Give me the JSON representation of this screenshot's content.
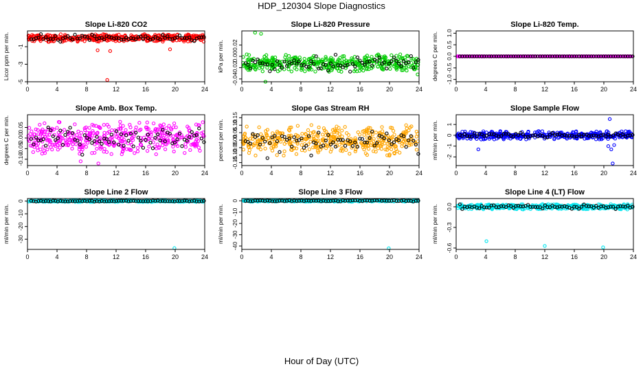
{
  "figure": {
    "title": "HDP_120304  Slope Diagnostics",
    "xlabel": "Hour of Day (UTC)"
  },
  "chart_data": [
    {
      "type": "scatter",
      "title": "Slope Li-820 CO2",
      "ylabel": "Licor ppm per min.",
      "xlim": [
        0,
        24
      ],
      "xticks": [
        0,
        4,
        8,
        12,
        16,
        20,
        24
      ],
      "xtick_labels": [
        "0",
        "4",
        "8",
        "12",
        "16",
        "20",
        "24"
      ],
      "ylim": [
        -5,
        0.8
      ],
      "yticks": [
        -5,
        -3,
        -1
      ],
      "ytick_labels": [
        "-5",
        "-3",
        "-1"
      ],
      "color": "#ff0000",
      "center": 0,
      "spread": 0.35,
      "outliers": [
        {
          "x": 10.8,
          "y": -4.8
        },
        {
          "x": 9.5,
          "y": -1.4
        },
        {
          "x": 11.2,
          "y": -1.5
        },
        {
          "x": 19.3,
          "y": -1.3
        }
      ]
    },
    {
      "type": "scatter",
      "title": "Slope Li-820 Pressure",
      "ylabel": "kPa per min.",
      "xlim": [
        0,
        24
      ],
      "xticks": [
        0,
        4,
        8,
        12,
        16,
        20,
        24
      ],
      "xtick_labels": [
        "0",
        "4",
        "8",
        "12",
        "16",
        "20",
        "24"
      ],
      "ylim": [
        -0.045,
        0.045
      ],
      "yticks": [
        -0.04,
        -0.02,
        0,
        0.02
      ],
      "ytick_labels": [
        "-0.04",
        "-0.02",
        "0.00",
        "0.02"
      ],
      "color": "#00cc00",
      "center": -0.012,
      "spread": 0.012,
      "outliers": [
        {
          "x": 1.8,
          "y": 0.042
        },
        {
          "x": 2.6,
          "y": 0.04
        },
        {
          "x": 3.2,
          "y": -0.045
        },
        {
          "x": 23.8,
          "y": -0.032
        }
      ]
    },
    {
      "type": "scatter",
      "title": "Slope Li-820 Temp.",
      "ylabel": "degrees C per min.",
      "xlim": [
        0,
        24
      ],
      "xticks": [
        0,
        4,
        8,
        12,
        16,
        20,
        24
      ],
      "xtick_labels": [
        "0",
        "4",
        "8",
        "12",
        "16",
        "20",
        "24"
      ],
      "ylim": [
        -1.1,
        1.1
      ],
      "yticks": [
        -1,
        -0.5,
        0,
        0.5,
        1
      ],
      "ytick_labels": [
        "-1.0",
        "-0.5",
        "0.0",
        "0.5",
        "1.0"
      ],
      "color": "#ff00ff",
      "center": 0,
      "spread": 0.0,
      "outliers": []
    },
    {
      "type": "scatter",
      "title": "Slope Amb. Box Temp.",
      "ylabel": "degrees C per min.",
      "xlim": [
        0,
        24
      ],
      "xticks": [
        0,
        4,
        8,
        12,
        16,
        20,
        24
      ],
      "xtick_labels": [
        "0",
        "4",
        "8",
        "12",
        "16",
        "20",
        "24"
      ],
      "ylim": [
        -0.13,
        0.11
      ],
      "yticks": [
        -0.1,
        -0.05,
        0,
        0.05
      ],
      "ytick_labels": [
        "-0.10",
        "-0.05",
        "0.00",
        "0.05"
      ],
      "color": "#ff00ff",
      "center": 0,
      "spread": 0.06,
      "outliers": [
        {
          "x": 7.2,
          "y": -0.11
        },
        {
          "x": 9.6,
          "y": -0.12
        }
      ]
    },
    {
      "type": "scatter",
      "title": "Slope Gas Stream RH",
      "ylabel": "percent per min.",
      "xlim": [
        0,
        24
      ],
      "xticks": [
        0,
        4,
        8,
        12,
        16,
        20,
        24
      ],
      "xtick_labels": [
        "0",
        "4",
        "8",
        "12",
        "16",
        "20",
        "24"
      ],
      "ylim": [
        -0.17,
        0.17
      ],
      "yticks": [
        -0.15,
        -0.1,
        -0.05,
        0,
        0.05,
        0.1,
        0.15
      ],
      "ytick_labels": [
        "-0.15",
        "-0.10",
        "-0.05",
        "0.00",
        "0.05",
        "0.10",
        "0.15"
      ],
      "color": "#ffa500",
      "center": 0,
      "spread": 0.08,
      "outliers": []
    },
    {
      "type": "scatter",
      "title": "Slope Sample Flow",
      "ylabel": "ml/min per min.",
      "xlim": [
        0,
        24
      ],
      "xticks": [
        0,
        4,
        8,
        12,
        16,
        20,
        24
      ],
      "xtick_labels": [
        "0",
        "4",
        "8",
        "12",
        "16",
        "20",
        "24"
      ],
      "ylim": [
        -2.8,
        1.9
      ],
      "yticks": [
        -2,
        -1,
        0,
        1
      ],
      "ytick_labels": [
        "-2",
        "-1",
        "0",
        "1"
      ],
      "color": "#0000ff",
      "center": 0,
      "spread": 0.3,
      "outliers": [
        {
          "x": 20.8,
          "y": 1.5
        },
        {
          "x": 21.2,
          "y": -2.6
        },
        {
          "x": 21.0,
          "y": -1.3
        },
        {
          "x": 20.6,
          "y": -1.0
        },
        {
          "x": 21.4,
          "y": -0.9
        },
        {
          "x": 3.0,
          "y": -1.3
        }
      ]
    },
    {
      "type": "scatter",
      "title": "Slope Line 2 Flow",
      "ylabel": "ml/min per min.",
      "xlim": [
        0,
        24
      ],
      "xticks": [
        0,
        4,
        8,
        12,
        16,
        20,
        24
      ],
      "xtick_labels": [
        "0",
        "4",
        "8",
        "12",
        "16",
        "20",
        "24"
      ],
      "ylim": [
        -38,
        2
      ],
      "yticks": [
        -30,
        -20,
        -10,
        0
      ],
      "ytick_labels": [
        "-30",
        "-20",
        "-10",
        "0"
      ],
      "color": "#00e5ee",
      "center": 0,
      "spread": 0.5,
      "outliers": [
        {
          "x": 19.9,
          "y": -37
        }
      ]
    },
    {
      "type": "scatter",
      "title": "Slope Line 3 Flow",
      "ylabel": "ml/min per min.",
      "xlim": [
        0,
        24
      ],
      "xticks": [
        0,
        4,
        8,
        12,
        16,
        20,
        24
      ],
      "xtick_labels": [
        "0",
        "4",
        "8",
        "12",
        "16",
        "20",
        "24"
      ],
      "ylim": [
        -43,
        2
      ],
      "yticks": [
        -40,
        -30,
        -20,
        -10,
        0
      ],
      "ytick_labels": [
        "-40",
        "-30",
        "-20",
        "-10",
        "0"
      ],
      "color": "#00e5ee",
      "center": 0,
      "spread": 0.6,
      "outliers": [
        {
          "x": 19.9,
          "y": -42
        }
      ]
    },
    {
      "type": "scatter",
      "title": "Slope Line 4 (LT) Flow",
      "ylabel": "ml/min per min.",
      "xlim": [
        0,
        24
      ],
      "xticks": [
        0,
        4,
        8,
        12,
        16,
        20,
        24
      ],
      "xtick_labels": [
        "0",
        "4",
        "8",
        "12",
        "16",
        "20",
        "24"
      ],
      "ylim": [
        -0.62,
        0.12
      ],
      "yticks": [
        -0.6,
        -0.3,
        0
      ],
      "ytick_labels": [
        "-0.6",
        "-0.3",
        "0.0"
      ],
      "color": "#00e5ee",
      "center": 0,
      "spread": 0.03,
      "outliers": [
        {
          "x": 4.1,
          "y": -0.5
        },
        {
          "x": 12.0,
          "y": -0.57
        },
        {
          "x": 19.9,
          "y": -0.59
        }
      ]
    }
  ]
}
